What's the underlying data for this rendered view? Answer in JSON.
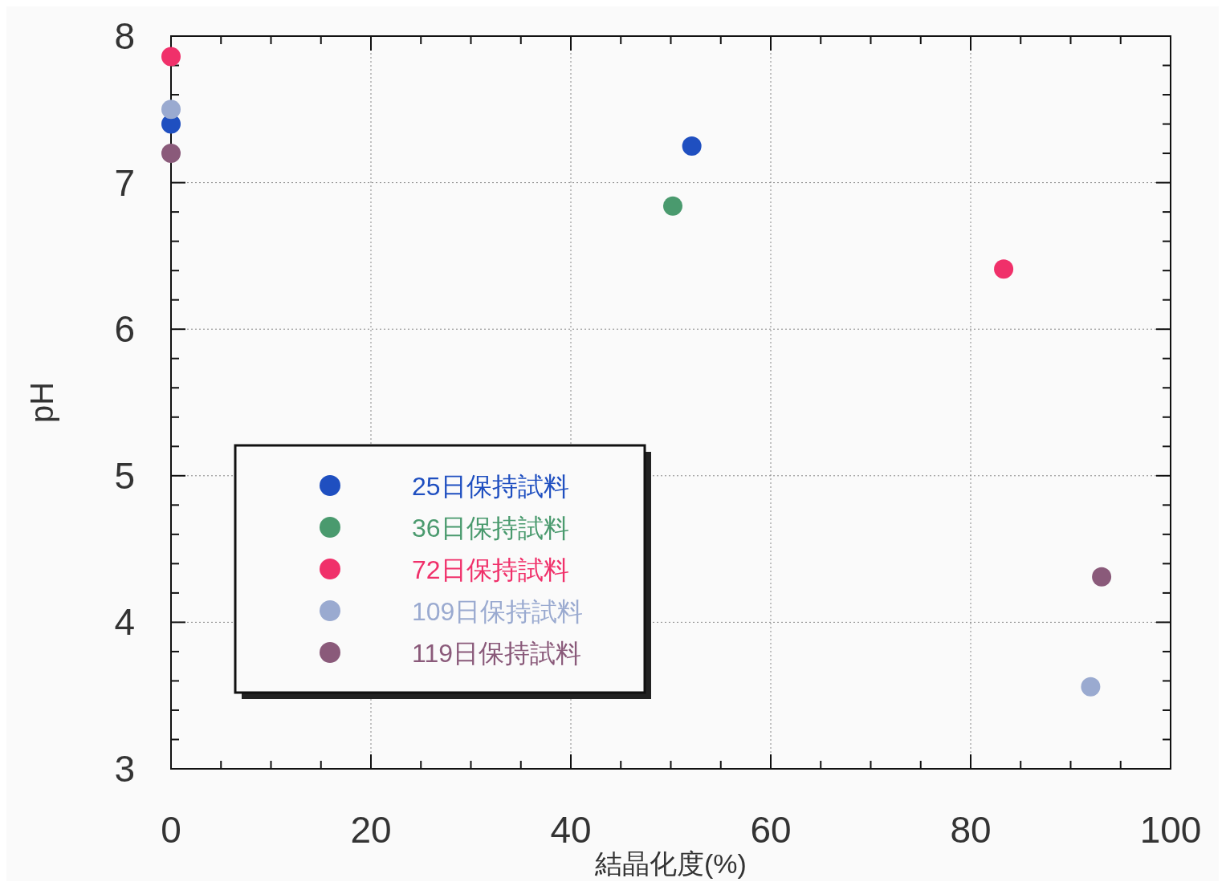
{
  "chart_data": {
    "type": "scatter",
    "xlabel": "結晶化度(%)",
    "ylabel": "pH",
    "xlim": [
      0,
      100
    ],
    "ylim": [
      3,
      8
    ],
    "xticks": [
      0,
      {
        "value": 5,
        "label": null
      },
      {
        "value": 10,
        "label": null
      },
      {
        "value": 15,
        "label": null
      },
      20,
      {
        "value": 25,
        "label": null
      },
      {
        "value": 30,
        "label": null
      },
      {
        "value": 35,
        "label": null
      },
      40,
      {
        "value": 45,
        "label": null
      },
      {
        "value": 50,
        "label": null
      },
      {
        "value": 55,
        "label": null
      },
      60,
      {
        "value": 65,
        "label": null
      },
      {
        "value": 70,
        "label": null
      },
      {
        "value": 75,
        "label": null
      },
      80,
      {
        "value": 85,
        "label": null
      },
      {
        "value": 90,
        "label": null
      },
      {
        "value": 95,
        "label": null
      },
      100
    ],
    "yticks": [
      3,
      {
        "value": 3.2,
        "label": null
      },
      {
        "value": 3.4,
        "label": null
      },
      {
        "value": 3.6,
        "label": null
      },
      {
        "value": 3.8,
        "label": null
      },
      4,
      {
        "value": 4.2,
        "label": null
      },
      {
        "value": 4.4,
        "label": null
      },
      {
        "value": 4.6,
        "label": null
      },
      {
        "value": 4.8,
        "label": null
      },
      5,
      {
        "value": 5.2,
        "label": null
      },
      {
        "value": 5.4,
        "label": null
      },
      {
        "value": 5.6,
        "label": null
      },
      {
        "value": 5.8,
        "label": null
      },
      6,
      {
        "value": 6.2,
        "label": null
      },
      {
        "value": 6.4,
        "label": null
      },
      {
        "value": 6.6,
        "label": null
      },
      {
        "value": 6.8,
        "label": null
      },
      7,
      {
        "value": 7.2,
        "label": null
      },
      {
        "value": 7.4,
        "label": null
      },
      {
        "value": 7.6,
        "label": null
      },
      {
        "value": 7.8,
        "label": null
      },
      8
    ],
    "grid": true,
    "legend": "bottom left",
    "marker": "circle",
    "series": [
      {
        "name": "25日保持試料",
        "color": "#1f4fc0",
        "x": [
          0,
          52.1
        ],
        "values": [
          7.4,
          7.25
        ]
      },
      {
        "name": "36日保持試料",
        "color": "#4a9a6e",
        "x": [
          50.2
        ],
        "values": [
          6.84
        ]
      },
      {
        "name": "72日保持試料",
        "color": "#f0306a",
        "x": [
          0,
          83.3
        ],
        "values": [
          7.86,
          6.41
        ]
      },
      {
        "name": "109日保持試料",
        "color": "#9aaad0",
        "x": [
          0,
          92
        ],
        "values": [
          7.5,
          3.56
        ]
      },
      {
        "name": "119日保持試料",
        "color": "#8a5a7a",
        "x": [
          0,
          93.1
        ],
        "values": [
          7.2,
          4.31
        ]
      }
    ]
  }
}
